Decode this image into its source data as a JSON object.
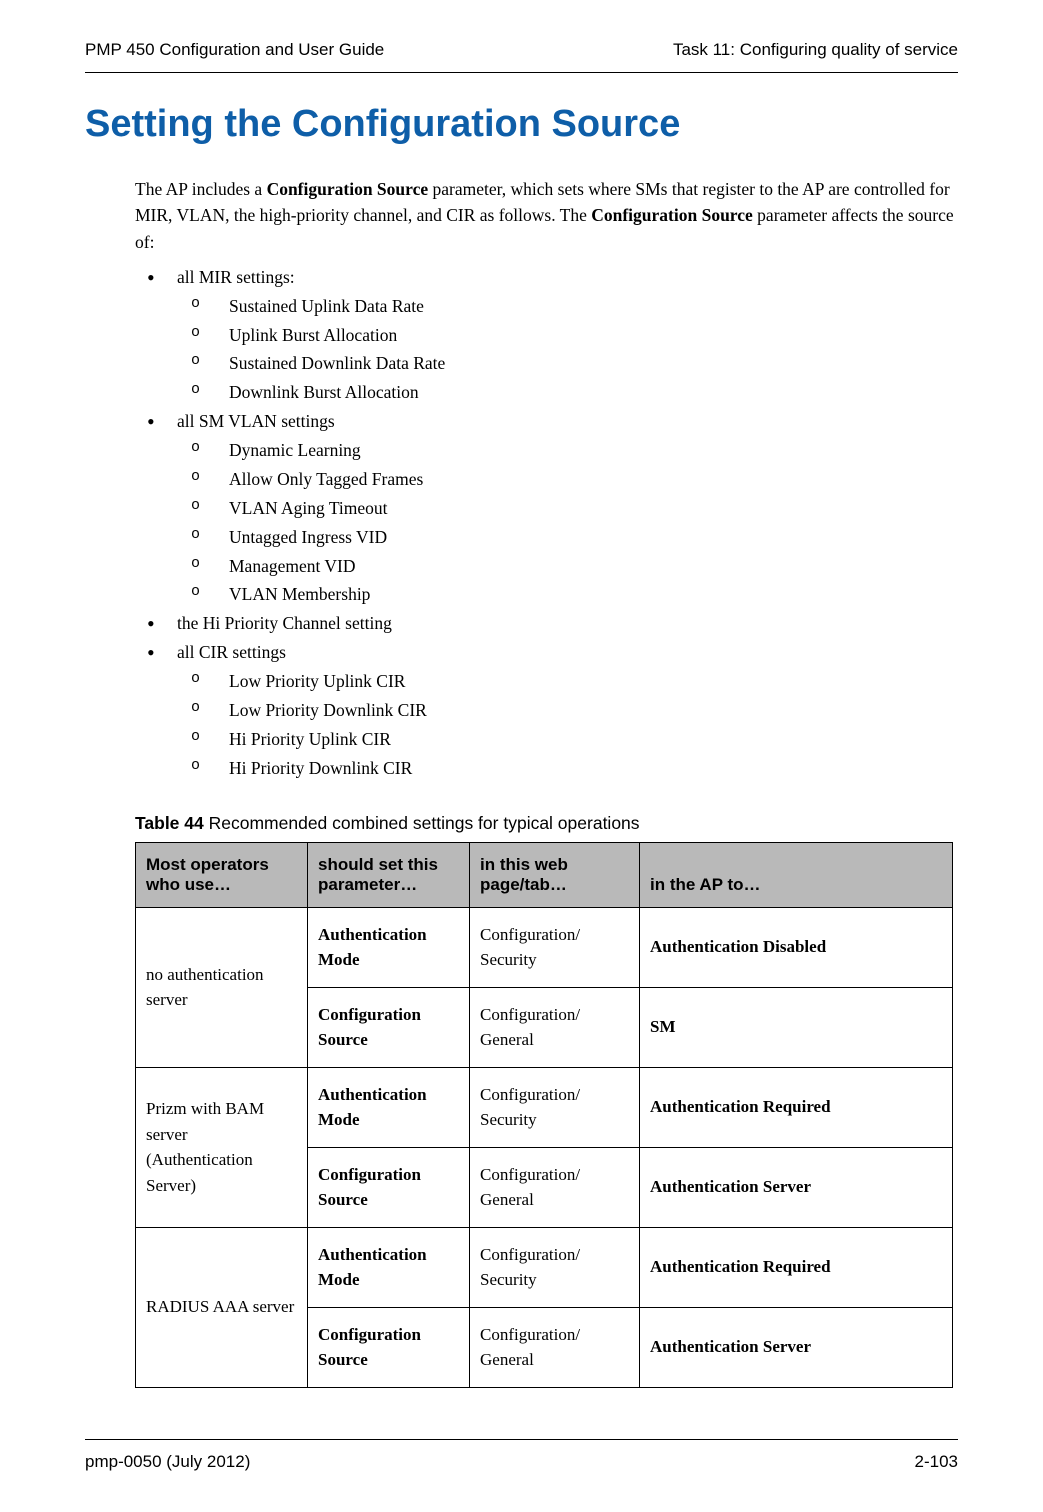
{
  "header": {
    "left": "PMP 450 Configuration and User Guide",
    "right": "Task 11: Configuring quality of service"
  },
  "title": "Setting the Configuration Source",
  "intro": {
    "prefix": "The AP includes a ",
    "bold1": "Configuration Source",
    "mid1": " parameter, which sets where SMs that register to the AP are controlled for MIR, VLAN, the high-priority channel, and CIR as follows. The ",
    "bold2": "Configuration Source",
    "suffix": " parameter affects the source of:"
  },
  "lists": {
    "item1": "all MIR settings:",
    "item1_sub": [
      "Sustained Uplink Data Rate",
      "Uplink Burst Allocation",
      "Sustained Downlink Data Rate",
      "Downlink Burst Allocation"
    ],
    "item2": "all SM VLAN settings",
    "item2_sub": [
      "Dynamic Learning",
      "Allow Only Tagged Frames",
      "VLAN Aging Timeout",
      "Untagged Ingress VID",
      "Management VID",
      "VLAN Membership"
    ],
    "item3": "the Hi Priority Channel setting",
    "item4": "all CIR settings",
    "item4_sub": [
      "Low Priority Uplink CIR",
      "Low Priority Downlink CIR",
      "Hi Priority Uplink CIR",
      "Hi Priority Downlink CIR"
    ]
  },
  "table": {
    "caption_bold": "Table 44",
    "caption_rest": " Recommended combined settings for typical operations",
    "headers": [
      "Most operators who use…",
      "should set this parameter…",
      "in this web page/tab…",
      "in the AP to…"
    ],
    "rows": [
      {
        "c1": "no authentication server",
        "c2": "Authentication Mode",
        "c3": "Configuration/\nSecurity",
        "c4": "Authentication Disabled"
      },
      {
        "c2": "Configuration Source",
        "c3": "Configuration/\nGeneral",
        "c4": "SM"
      },
      {
        "c1": "Prizm with BAM server (Authentication Server)",
        "c2": "Authentication Mode",
        "c3": "Configuration/\nSecurity",
        "c4": "Authentication Required"
      },
      {
        "c2": "Configuration Source",
        "c3": "Configuration/\nGeneral",
        "c4": "Authentication Server"
      },
      {
        "c1": "RADIUS AAA server",
        "c2": "Authentication Mode",
        "c3": "Configuration/\nSecurity",
        "c4": "Authentication Required"
      },
      {
        "c2": "Configuration Source",
        "c3": "Configuration/\nGeneral",
        "c4": "Authentication Server"
      }
    ]
  },
  "footer": {
    "left": "pmp-0050 (July 2012)",
    "right": "2-103"
  }
}
